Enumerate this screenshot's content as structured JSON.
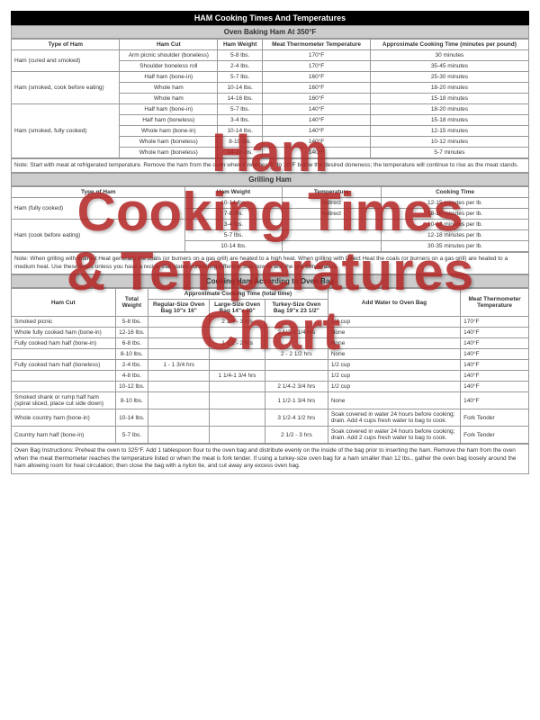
{
  "watermark": {
    "line1": "Ham",
    "line2": "Cooking Times",
    "line3": "& Temperatures",
    "line4": "Chart"
  },
  "mainTitle": "HAM Cooking Times And Temperatures",
  "section1": {
    "title": "Oven Baking Ham At 350°F",
    "headers": [
      "Type of Ham",
      "Ham Cut",
      "Ham Weight",
      "Meat Thermometer Temperature",
      "Approximate Cooking Time (minutes per pound)"
    ],
    "groups": [
      {
        "type": "Ham (cured and smoked)",
        "rows": [
          [
            "Arm picnic shoulder (boneless)",
            "5-8 lbs.",
            "170°F",
            "30 minutes"
          ],
          [
            "Shoulder boneless roll",
            "2-4 lbs.",
            "170°F",
            "35-45 minutes"
          ]
        ]
      },
      {
        "type": "Ham (smoked, cook before eating)",
        "rows": [
          [
            "Half ham (bone-in)",
            "5-7 lbs.",
            "160°F",
            "25-30 minutes"
          ],
          [
            "Whole ham",
            "10-14 lbs.",
            "160°F",
            "18-20 minutes"
          ],
          [
            "Whole ham",
            "14-16 lbs.",
            "160°F",
            "15-18 minutes"
          ]
        ]
      },
      {
        "type": "Ham (smoked, fully cooked)",
        "rows": [
          [
            "Half ham (bone-in)",
            "5-7 lbs.",
            "140°F",
            "18-20 minutes"
          ],
          [
            "Half ham (boneless)",
            "3-4 lbs.",
            "140°F",
            "15-18 minutes"
          ],
          [
            "Whole ham (bone-in)",
            "10-14 lbs.",
            "140°F",
            "12-15 minutes"
          ],
          [
            "Whole ham (boneless)",
            "8-10 lbs.",
            "140°F",
            "10-12 minutes"
          ],
          [
            "Whole ham (boneless)",
            "14-16 lbs.",
            "140°F",
            "5-7 minutes"
          ]
        ]
      }
    ],
    "note": "Note: Start with meat at refrigerated temperature. Remove the ham from the oven when it reaches 5° to 10°F below the desired doneness; the temperature will continue to rise as the meat stands."
  },
  "section2": {
    "title": "Grilling Ham",
    "headers": [
      "Type of Ham",
      "Ham Weight",
      "Temperature",
      "Cooking Time"
    ],
    "groups": [
      {
        "type": "Ham (fully cooked)",
        "rows": [
          [
            "10-14 lbs.",
            "Indirect",
            "12-15 minutes per lb."
          ],
          [
            "7-8 lbs.",
            "Indirect",
            "18-20 minutes per lb."
          ]
        ]
      },
      {
        "type": "Ham (cook before eating)",
        "rows": [
          [
            "3-4 lbs.",
            "",
            "10-12 minutes per lb."
          ],
          [
            "5-7 lbs.",
            "",
            "12-18 minutes per lb."
          ],
          [
            "10-14 lbs.",
            "",
            "30-35 minutes per lb."
          ]
        ]
      }
    ],
    "note": "Note: When grilling with Indirect Heat generally the coals (or burners on a gas grill) are heated to a high heat. When grilling with Direct Heat the coals (or burners on a gas grill) are heated to a medium heat. Use these times unless you have a recipe that states something different. See how to test the grill temperature."
  },
  "section3": {
    "title": "Cooking Ham According to Oven Bag",
    "subTitle": "Approximate Cooking Time (total time)",
    "headers": [
      "Ham Cut",
      "Total Weight",
      "Regular-Size Oven Bag 10\"x 16\"",
      "Large-Size Oven Bag 14\"x 20\"",
      "Turkey-Size Oven Bag 19\"x 23 1/2\"",
      "Add Water to Oven Bag",
      "Meat Thermometer Temperature"
    ],
    "rows": [
      [
        "Smoked picnic",
        "5-8 lbs.",
        "",
        "2 1/4 - 3 hrs",
        "",
        "1/4 cup",
        "170°F"
      ],
      [
        "Whole fully cooked ham (bone-in)",
        "12-16 lbs.",
        "",
        "",
        "2 1/2-3 1/4 hrs",
        "None",
        "140°F"
      ],
      [
        "Fully cooked ham half (bone-in)",
        "6-8 lbs.",
        "",
        "1 1/2 - 2 hrs",
        "",
        "None",
        "140°F"
      ],
      [
        "",
        "8-10 lbs.",
        "",
        "",
        "2 - 2 1/2 hrs",
        "None",
        "140°F"
      ],
      [
        "Fully cooked ham half (boneless)",
        "2-4 lbs.",
        "1 - 1 3/4 hrs",
        "",
        "",
        "1/2 cup",
        "140°F"
      ],
      [
        "",
        "4-8 lbs.",
        "",
        "1 1/4-1 3/4 hrs",
        "",
        "1/2 cup",
        "140°F"
      ],
      [
        "",
        "10-12 lbs.",
        "",
        "",
        "2 1/4-2 3/4 hrs",
        "1/2 cup",
        "140°F"
      ],
      [
        "Smoked shank or rump half ham (spiral sliced, place cut side down)",
        "8-10 lbs.",
        "",
        "",
        "1 1/2-1 3/4 hrs",
        "None",
        "140°F"
      ],
      [
        "Whole country ham (bone-in)",
        "10-14 lbs.",
        "",
        "",
        "3 1/2-4 1/2 hrs",
        "Soak covered in water 24 hours before cooking; drain. Add 4 cups fresh water to bag to cook.",
        "Fork Tender"
      ],
      [
        "Country ham half (bone-in)",
        "5-7 lbs.",
        "",
        "",
        "2 1/2 - 3 hrs",
        "Soak covered in water 24 hours before cooking; drain. Add 2 cups fresh water to bag to cook.",
        "Fork Tender"
      ]
    ],
    "note": "Oven Bag Instructions: Preheat the oven to 325°F. Add 1 tablespoon flour to the oven bag and distribute evenly on the inside of the bag prior to inserting the ham. Remove the ham from the oven when the meat thermometer reaches the temperature listed or when the meat is fork tender. If using a turkey-size oven bag for a ham smaller than 12 lbs., gather the oven bag loosely around the ham allowing room for heat circulation; then close the bag with a nylon tie, and cut away any excess oven bag."
  }
}
